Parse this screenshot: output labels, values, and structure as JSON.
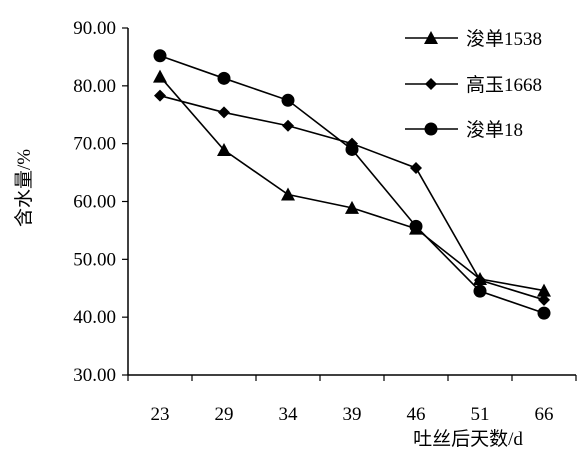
{
  "chart_data": {
    "type": "line",
    "title": "",
    "xlabel": "吐丝后天数/d",
    "ylabel": "含水量/%",
    "categories": [
      "23",
      "29",
      "34",
      "39",
      "46",
      "51",
      "66"
    ],
    "ylim": [
      30,
      90
    ],
    "yticks": [
      "30.00",
      "40.00",
      "50.00",
      "60.00",
      "70.00",
      "80.00",
      "90.00"
    ],
    "grid": false,
    "legend_position": "top-right",
    "series": [
      {
        "name": "浚单1538",
        "marker": "triangle",
        "values": [
          81.6,
          68.9,
          61.2,
          58.9,
          55.3,
          46.6,
          44.6
        ]
      },
      {
        "name": "高玉1668",
        "marker": "diamond",
        "values": [
          78.3,
          75.4,
          73.1,
          70.0,
          65.8,
          46.4,
          43.0
        ]
      },
      {
        "name": "浚单18",
        "marker": "circle",
        "values": [
          85.2,
          81.3,
          77.5,
          69.0,
          55.7,
          44.5,
          40.7
        ]
      }
    ]
  }
}
